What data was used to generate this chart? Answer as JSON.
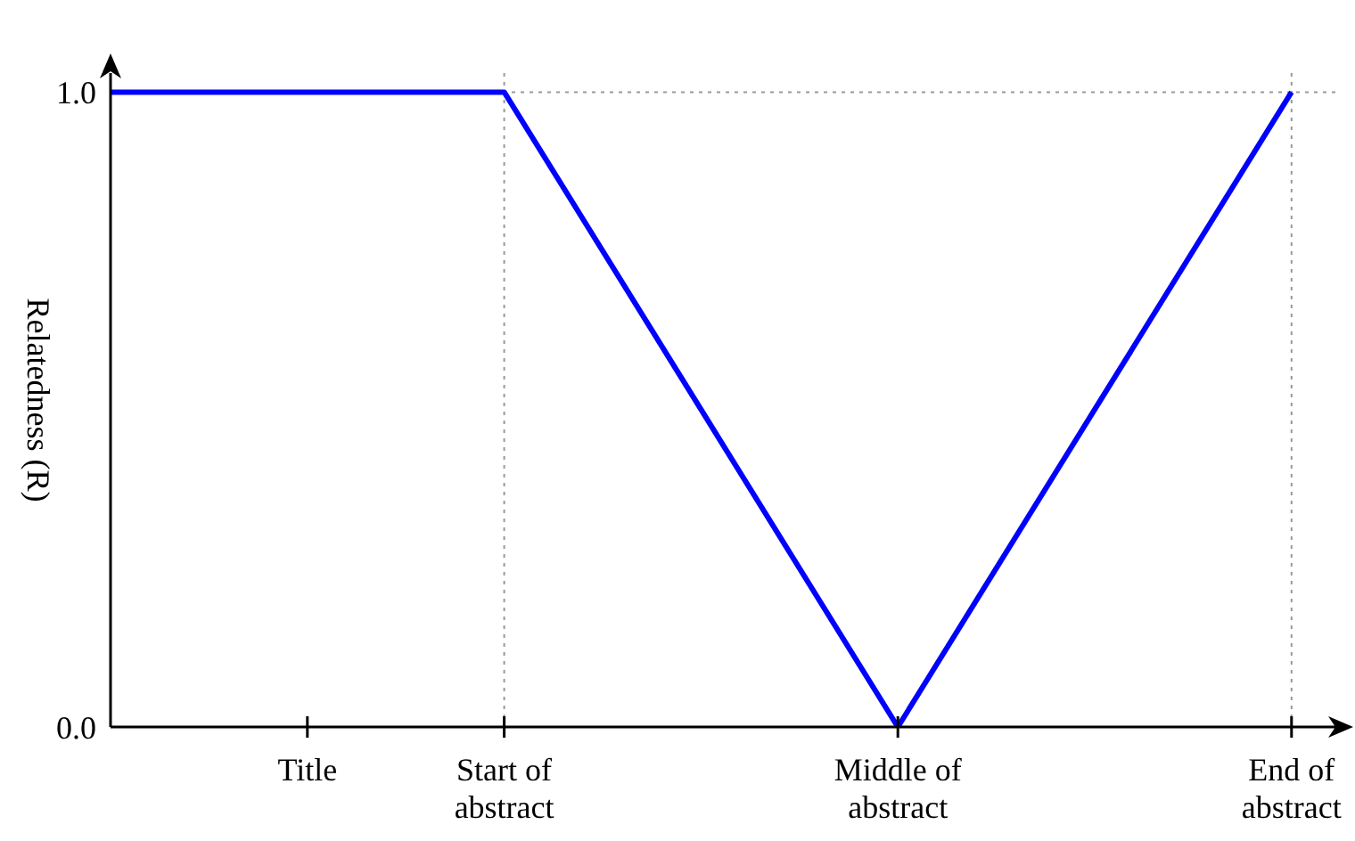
{
  "chart_data": {
    "type": "line",
    "ylabel": "Relatedness (R)",
    "categories": [
      null,
      "Title",
      "Start of abstract",
      null,
      "Middle of abstract",
      null,
      "End of abstract"
    ],
    "series": [
      {
        "color": "#0000ff",
        "values": [
          1,
          1,
          1,
          0.5,
          0,
          0.5,
          1
        ]
      }
    ],
    "ylim": [
      0,
      1.03
    ],
    "yticks": [
      {
        "value": 0,
        "label": "0.0"
      },
      {
        "value": 1,
        "label": "1.0"
      }
    ],
    "ref_lines": [
      {
        "axis": "y",
        "value": 1,
        "color": "#999999",
        "line_style": "dotted"
      },
      {
        "axis": "x",
        "value": "Start of abstract",
        "color": "#999999",
        "line_style": "dotted"
      },
      {
        "axis": "x",
        "value": "End of abstract",
        "color": "#999999",
        "line_style": "dotted"
      }
    ],
    "grid": false,
    "legend": false,
    "marker": "none",
    "line_style": "solid"
  }
}
